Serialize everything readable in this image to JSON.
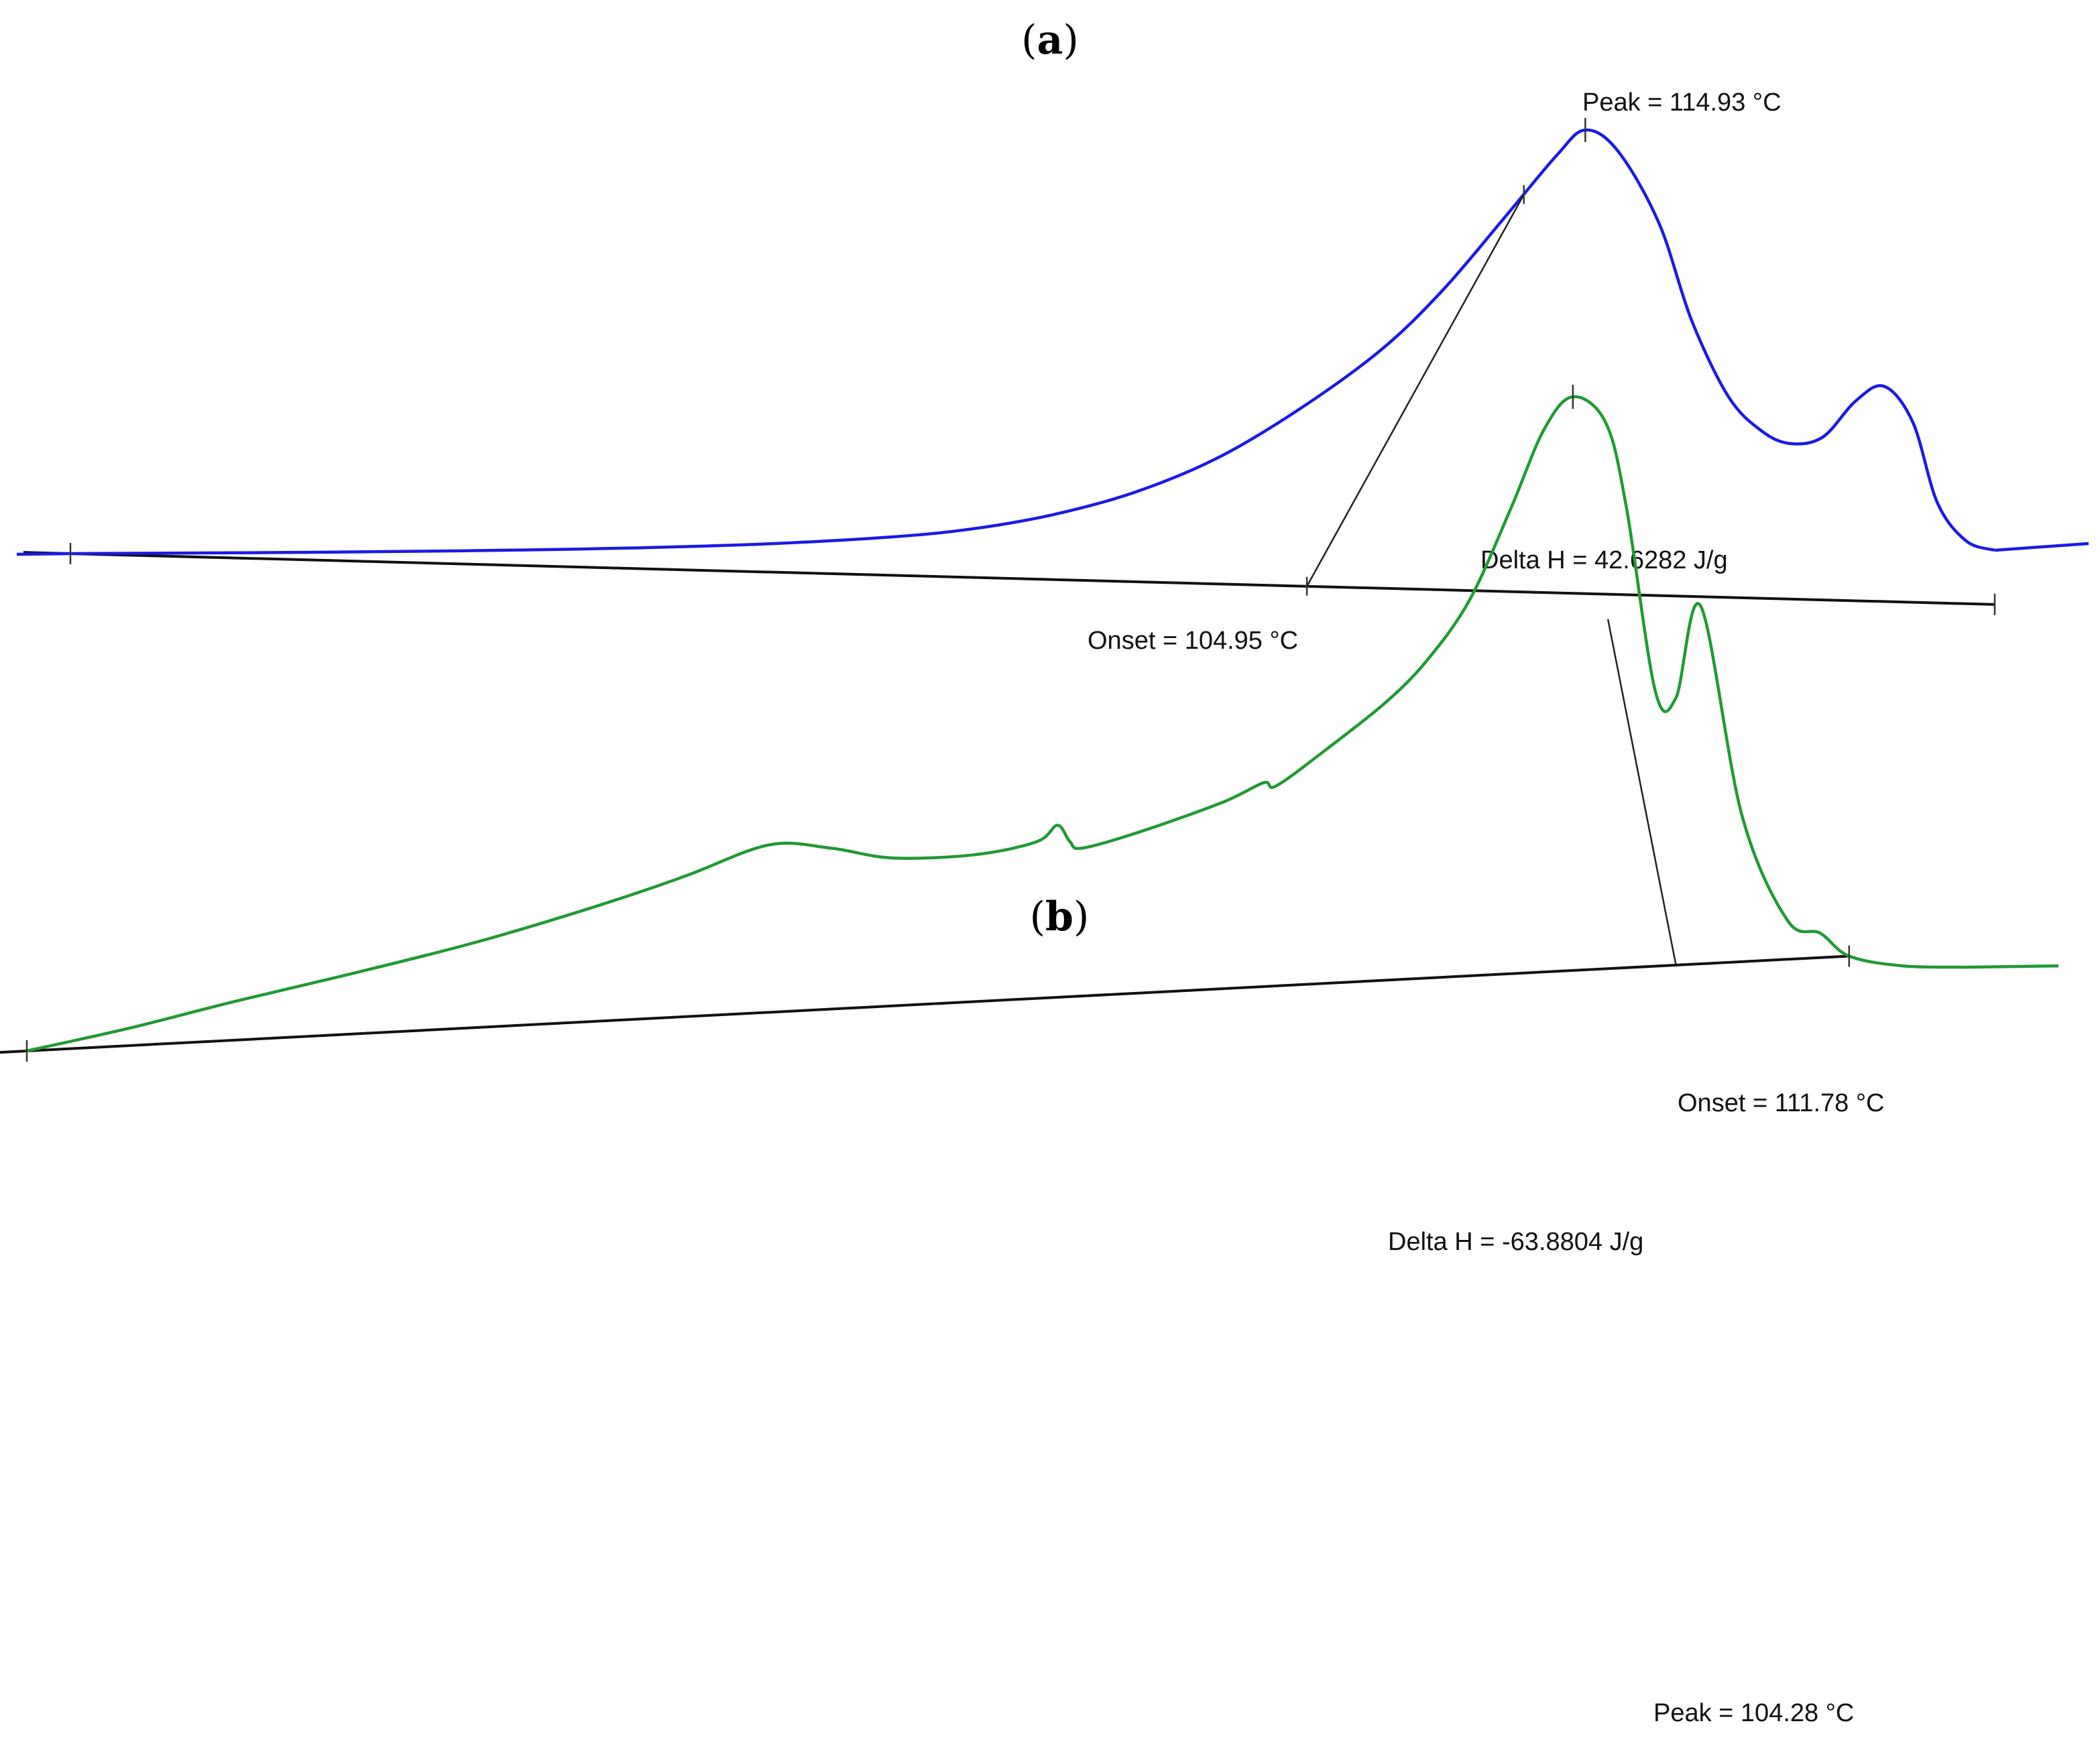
{
  "chart_data": [
    {
      "type": "line",
      "panel_label": "a",
      "title": "",
      "xlabel": "",
      "ylabel": "",
      "grid": false,
      "legend": "none",
      "color": "#1a1ae6",
      "series": [
        {
          "name": "",
          "x": [
            0.0,
            2.0,
            5.0,
            8.0,
            11.0,
            14.0,
            17.0,
            20.0,
            22.0,
            24.0,
            26.0,
            28.0,
            30.0,
            32.0,
            33.5,
            35.0,
            36.3,
            37.0,
            37.8,
            38.8,
            39.6,
            40.5,
            41.3,
            42.0,
            42.8,
            43.6,
            44.3,
            45.0,
            45.6,
            46.3,
            47.0
          ],
          "y": [
            0.0,
            0.1,
            0.25,
            0.5,
            0.85,
            1.4,
            2.3,
            3.9,
            5.8,
            9.2,
            14.5,
            22.5,
            34.0,
            48.0,
            62.0,
            79.0,
            94.0,
            100.0,
            95.0,
            78.0,
            55.0,
            37.0,
            29.0,
            26.0,
            27.5,
            36.0,
            39.5,
            31.0,
            12.0,
            3.0,
            0.8
          ]
        }
      ],
      "baseline": [
        [
          0.0,
          0.0
        ],
        [
          47.0,
          -12.0
        ]
      ],
      "annotations": {
        "peak": "Peak = 114.93 °C",
        "delta_h": "Delta H = 42.6282 J/g",
        "onset": "Onset = 104.95 °C"
      }
    },
    {
      "type": "line",
      "panel_label": "b",
      "title": "",
      "xlabel": "",
      "ylabel": "",
      "grid": false,
      "legend": "none",
      "color": "#1f9a32",
      "series": [
        {
          "name": "",
          "x": [
            0.0,
            2.5,
            5.0,
            8.0,
            11.0,
            14.0,
            16.0,
            18.0,
            19.5,
            21.0,
            23.0,
            24.5,
            25.0,
            25.3,
            25.6,
            27.0,
            29.0,
            30.0,
            30.3,
            31.5,
            33.0,
            34.0,
            35.0,
            36.0,
            36.8,
            37.5,
            38.3,
            38.8,
            39.5,
            40.0,
            40.6,
            41.6,
            42.7,
            43.5,
            44.2,
            45.5,
            47.0
          ],
          "y": [
            0.0,
            -3.5,
            -7.5,
            -12.0,
            -16.8,
            -22.5,
            -26.8,
            -31.5,
            -31.0,
            -29.5,
            -30.0,
            -32.0,
            -34.5,
            -32.0,
            -31.0,
            -33.5,
            -38.0,
            -41.0,
            -40.5,
            -46.0,
            -53.5,
            -60.0,
            -69.0,
            -83.0,
            -95.0,
            -100.0,
            -96.0,
            -83.0,
            -55.0,
            -54.0,
            -68.0,
            -36.0,
            -20.0,
            -18.0,
            -14.5,
            -13.0,
            -12.8
          ]
        }
      ],
      "baseline": [
        [
          0.0,
          0.0
        ],
        [
          44.2,
          -14.5
        ]
      ],
      "annotations": {
        "onset": "Onset = 111.78 °C",
        "delta_h": "Delta H = -63.8804 J/g",
        "peak": "Peak = 104.28 °C"
      }
    }
  ]
}
